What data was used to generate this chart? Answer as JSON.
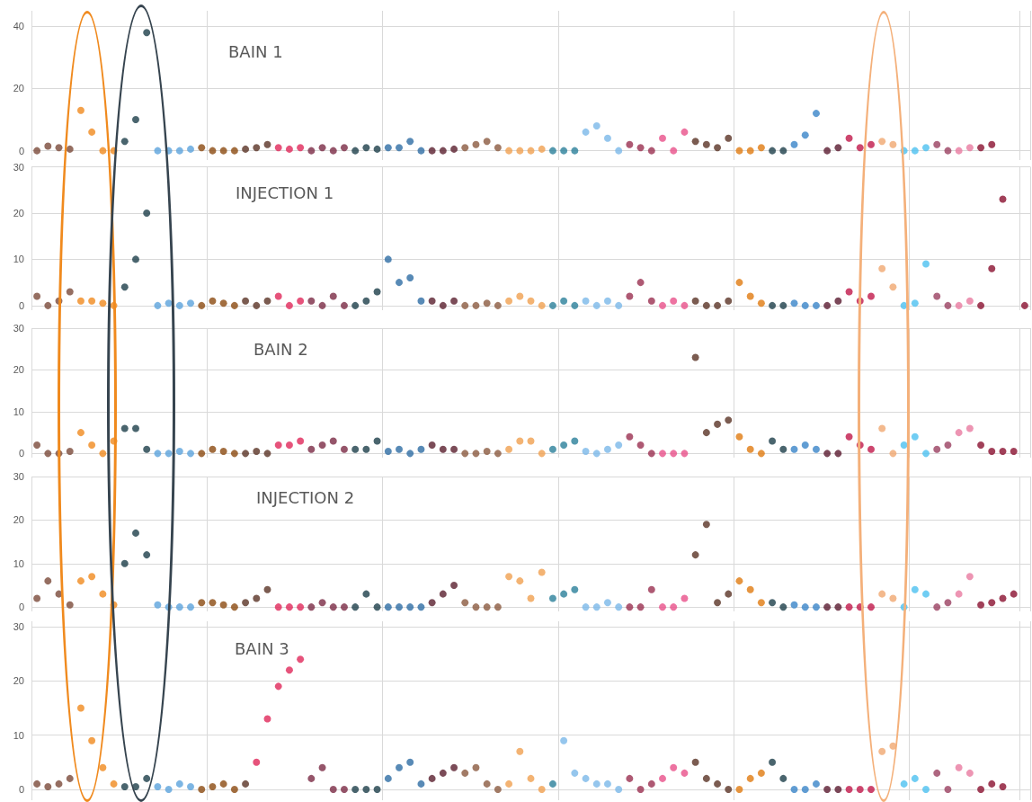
{
  "chart_data": [
    {
      "type": "scatter",
      "title": "BAIN 1",
      "marker": "circle",
      "grid": true,
      "tick_labels": "y",
      "ylim": [
        -3,
        45
      ],
      "yticks": [
        0,
        20,
        40
      ],
      "categories": [
        null,
        null,
        null,
        null,
        null,
        null,
        null,
        null,
        null,
        null,
        null,
        null,
        null,
        null,
        null,
        null,
        null,
        null,
        null,
        null,
        null,
        null,
        null,
        null,
        null,
        null,
        null,
        null,
        null,
        null,
        null,
        null,
        null,
        null,
        null,
        null,
        null,
        null,
        null,
        null,
        null,
        null,
        null,
        null,
        null,
        null,
        null,
        null,
        null,
        null,
        null,
        null,
        null,
        null,
        null,
        null,
        null,
        null,
        null,
        null,
        null,
        null,
        null,
        null,
        null,
        null,
        null,
        null,
        null,
        null,
        null,
        null,
        null,
        null,
        null,
        null,
        null,
        null,
        null,
        null,
        null,
        null,
        null,
        null,
        null,
        null,
        null,
        null,
        null,
        null,
        null
      ],
      "values": [
        0,
        1.5,
        1,
        0.5,
        13,
        6,
        0,
        0,
        3,
        10,
        38,
        0,
        0,
        0,
        0.5,
        1,
        0,
        0,
        0,
        0.5,
        1,
        2,
        1,
        0.5,
        1,
        0,
        1,
        0,
        1,
        0,
        1,
        0.5,
        1,
        1,
        3,
        0,
        0,
        0,
        0.5,
        1,
        2,
        3,
        1,
        0,
        0,
        0,
        0.5,
        0,
        0,
        0,
        6,
        8,
        4,
        0,
        2,
        1,
        0,
        4,
        0,
        6,
        3,
        2,
        1,
        4,
        0,
        0,
        1,
        0,
        0,
        2,
        5,
        12,
        0,
        1,
        4,
        1,
        2,
        3,
        2,
        0,
        0,
        1,
        2,
        0,
        0,
        1,
        1,
        2,
        null,
        null,
        null
      ],
      "colors": [
        "#7b4a3a",
        "#7b4a3a",
        "#7b4a3a",
        "#7b4a3a",
        "#f08a1e",
        "#f08a1e",
        "#f08a1e",
        "#f08a1e",
        "#1d3f4a",
        "#1d3f4a",
        "#1d3f4a",
        "#5ba3dc",
        "#5ba3dc",
        "#5ba3dc",
        "#5ba3dc",
        "#8b4a10",
        "#8b4a10",
        "#8b4a10",
        "#8b4a10",
        "#5a3325",
        "#5a3325",
        "#5a3325",
        "#e0285a",
        "#e0285a",
        "#e0285a",
        "#7a2a45",
        "#7a2a45",
        "#7a2a45",
        "#7a2a45",
        "#1d3f4a",
        "#1d3f4a",
        "#1d3f4a",
        "#2e6da4",
        "#2e6da4",
        "#2e6da4",
        "#2e6da4",
        "#5a1f2e",
        "#5a1f2e",
        "#5a1f2e",
        "#8b5a40",
        "#8b5a40",
        "#8b5a40",
        "#8b5a40",
        "#f0a050",
        "#f0a050",
        "#f0a050",
        "#f0a050",
        "#2a7f9a",
        "#2a7f9a",
        "#2a7f9a",
        "#7ab8e8",
        "#7ab8e8",
        "#7ab8e8",
        "#7ab8e8",
        "#9a3050",
        "#9a3050",
        "#9a3050",
        "#e8508a",
        "#e8508a",
        "#e8508a",
        "#5a3325",
        "#5a3325",
        "#5a3325",
        "#5a3325",
        "#e07a10",
        "#e07a10",
        "#e07a10",
        "#1d3f4a",
        "#1d3f4a",
        "#3a85c8",
        "#3a85c8",
        "#3a85c8",
        "#5a1a30",
        "#5a1a30",
        "#c0184a",
        "#c0184a",
        "#c0184a",
        "#f0a870",
        "#f0a870",
        "#4cc0f0",
        "#4cc0f0",
        "#4cc0f0",
        "#9a4060",
        "#9a4060",
        "#e87aa0",
        "#e87aa0",
        "#8a1030",
        "#8a1030",
        "#8a1030",
        "#8a1030",
        "#8a1030"
      ]
    },
    {
      "type": "scatter",
      "title": "INJECTION 1",
      "marker": "circle",
      "grid": true,
      "tick_labels": "y",
      "ylim": [
        -1,
        30
      ],
      "yticks": [
        0,
        10,
        20,
        30
      ],
      "categories": [
        null,
        null,
        null,
        null,
        null,
        null,
        null,
        null,
        null,
        null,
        null,
        null,
        null,
        null,
        null,
        null,
        null,
        null,
        null,
        null,
        null,
        null,
        null,
        null,
        null,
        null,
        null,
        null,
        null,
        null,
        null,
        null,
        null,
        null,
        null,
        null,
        null,
        null,
        null,
        null,
        null,
        null,
        null,
        null,
        null,
        null,
        null,
        null,
        null,
        null,
        null,
        null,
        null,
        null,
        null,
        null,
        null,
        null,
        null,
        null,
        null,
        null,
        null,
        null,
        null,
        null,
        null,
        null,
        null,
        null,
        null,
        null,
        null,
        null,
        null,
        null,
        null,
        null,
        null,
        null,
        null,
        null,
        null,
        null,
        null,
        null,
        null,
        null,
        null,
        null,
        null
      ],
      "values": [
        2,
        0,
        1,
        3,
        1,
        1,
        0.5,
        0,
        4,
        10,
        20,
        0,
        0.5,
        0,
        0.5,
        0,
        1,
        0.5,
        0,
        1,
        0,
        1,
        2,
        0,
        1,
        1,
        0,
        2,
        0,
        0,
        1,
        3,
        10,
        5,
        6,
        1,
        1,
        0,
        1,
        0,
        0,
        0.5,
        0,
        1,
        2,
        1,
        0,
        0,
        1,
        0,
        1,
        0,
        1,
        0,
        2,
        5,
        1,
        0,
        1,
        0,
        1,
        0,
        0,
        1,
        5,
        2,
        0.5,
        0,
        0,
        0.5,
        0,
        0,
        0,
        1,
        3,
        1,
        2,
        8,
        4,
        0,
        0.5,
        9,
        2,
        0,
        0,
        1,
        0,
        8,
        23,
        null,
        0
      ],
      "colors": [
        "#7b4a3a",
        "#7b4a3a",
        "#7b4a3a",
        "#7b4a3a",
        "#f08a1e",
        "#f08a1e",
        "#f08a1e",
        "#f08a1e",
        "#1d3f4a",
        "#1d3f4a",
        "#1d3f4a",
        "#5ba3dc",
        "#5ba3dc",
        "#5ba3dc",
        "#5ba3dc",
        "#8b4a10",
        "#8b4a10",
        "#8b4a10",
        "#8b4a10",
        "#5a3325",
        "#5a3325",
        "#5a3325",
        "#e0285a",
        "#e0285a",
        "#e0285a",
        "#7a2a45",
        "#7a2a45",
        "#7a2a45",
        "#7a2a45",
        "#1d3f4a",
        "#1d3f4a",
        "#1d3f4a",
        "#2e6da4",
        "#2e6da4",
        "#2e6da4",
        "#2e6da4",
        "#5a1f2e",
        "#5a1f2e",
        "#5a1f2e",
        "#8b5a40",
        "#8b5a40",
        "#8b5a40",
        "#8b5a40",
        "#f0a050",
        "#f0a050",
        "#f0a050",
        "#f0a050",
        "#2a7f9a",
        "#2a7f9a",
        "#2a7f9a",
        "#7ab8e8",
        "#7ab8e8",
        "#7ab8e8",
        "#7ab8e8",
        "#9a3050",
        "#9a3050",
        "#9a3050",
        "#e8508a",
        "#e8508a",
        "#e8508a",
        "#5a3325",
        "#5a3325",
        "#5a3325",
        "#5a3325",
        "#e07a10",
        "#e07a10",
        "#e07a10",
        "#1d3f4a",
        "#1d3f4a",
        "#3a85c8",
        "#3a85c8",
        "#3a85c8",
        "#5a1a30",
        "#5a1a30",
        "#c0184a",
        "#c0184a",
        "#c0184a",
        "#f0a870",
        "#f0a870",
        "#4cc0f0",
        "#4cc0f0",
        "#4cc0f0",
        "#9a4060",
        "#9a4060",
        "#e87aa0",
        "#e87aa0",
        "#8a1030",
        "#8a1030",
        "#8a1030",
        "#8a1030",
        "#8a1030"
      ]
    },
    {
      "type": "scatter",
      "title": "BAIN 2",
      "marker": "circle",
      "grid": true,
      "tick_labels": "y",
      "ylim": [
        -1,
        30
      ],
      "yticks": [
        0,
        10,
        20,
        30
      ],
      "categories": [
        null,
        null,
        null,
        null,
        null,
        null,
        null,
        null,
        null,
        null,
        null,
        null,
        null,
        null,
        null,
        null,
        null,
        null,
        null,
        null,
        null,
        null,
        null,
        null,
        null,
        null,
        null,
        null,
        null,
        null,
        null,
        null,
        null,
        null,
        null,
        null,
        null,
        null,
        null,
        null,
        null,
        null,
        null,
        null,
        null,
        null,
        null,
        null,
        null,
        null,
        null,
        null,
        null,
        null,
        null,
        null,
        null,
        null,
        null,
        null,
        null,
        null,
        null,
        null,
        null,
        null,
        null,
        null,
        null,
        null,
        null,
        null,
        null,
        null,
        null,
        null,
        null,
        null,
        null,
        null,
        null,
        null,
        null,
        null,
        null,
        null,
        null,
        null,
        null,
        null,
        null
      ],
      "values": [
        2,
        0,
        0,
        0.5,
        5,
        2,
        0,
        3,
        6,
        6,
        1,
        0,
        0,
        0.5,
        0,
        0,
        1,
        0.5,
        0,
        0,
        0.5,
        0,
        2,
        2,
        3,
        1,
        2,
        3,
        1,
        1,
        1,
        3,
        0.5,
        1,
        0,
        1,
        2,
        1,
        1,
        0,
        0,
        0.5,
        0,
        1,
        3,
        3,
        0,
        1,
        2,
        3,
        0.5,
        0,
        1,
        2,
        4,
        2,
        0,
        0,
        0,
        0,
        23,
        5,
        7,
        8,
        4,
        1,
        0,
        3,
        1,
        1,
        2,
        1,
        0,
        0,
        4,
        2,
        1,
        6,
        0,
        2,
        4,
        0,
        1,
        2,
        5,
        6,
        2,
        0.5,
        0.5,
        0.5,
        null
      ],
      "colors": [
        "#7b4a3a",
        "#7b4a3a",
        "#7b4a3a",
        "#7b4a3a",
        "#f08a1e",
        "#f08a1e",
        "#f08a1e",
        "#f08a1e",
        "#1d3f4a",
        "#1d3f4a",
        "#1d3f4a",
        "#5ba3dc",
        "#5ba3dc",
        "#5ba3dc",
        "#5ba3dc",
        "#8b4a10",
        "#8b4a10",
        "#8b4a10",
        "#8b4a10",
        "#5a3325",
        "#5a3325",
        "#5a3325",
        "#e0285a",
        "#e0285a",
        "#e0285a",
        "#7a2a45",
        "#7a2a45",
        "#7a2a45",
        "#7a2a45",
        "#1d3f4a",
        "#1d3f4a",
        "#1d3f4a",
        "#2e6da4",
        "#2e6da4",
        "#2e6da4",
        "#2e6da4",
        "#5a1f2e",
        "#5a1f2e",
        "#5a1f2e",
        "#8b5a40",
        "#8b5a40",
        "#8b5a40",
        "#8b5a40",
        "#f0a050",
        "#f0a050",
        "#f0a050",
        "#f0a050",
        "#2a7f9a",
        "#2a7f9a",
        "#2a7f9a",
        "#7ab8e8",
        "#7ab8e8",
        "#7ab8e8",
        "#7ab8e8",
        "#9a3050",
        "#9a3050",
        "#9a3050",
        "#e8508a",
        "#e8508a",
        "#e8508a",
        "#5a3325",
        "#5a3325",
        "#5a3325",
        "#5a3325",
        "#e07a10",
        "#e07a10",
        "#e07a10",
        "#1d3f4a",
        "#1d3f4a",
        "#3a85c8",
        "#3a85c8",
        "#3a85c8",
        "#5a1a30",
        "#5a1a30",
        "#c0184a",
        "#c0184a",
        "#c0184a",
        "#f0a870",
        "#f0a870",
        "#4cc0f0",
        "#4cc0f0",
        "#4cc0f0",
        "#9a4060",
        "#9a4060",
        "#e87aa0",
        "#e87aa0",
        "#8a1030",
        "#8a1030",
        "#8a1030",
        "#8a1030",
        "#8a1030"
      ]
    },
    {
      "type": "scatter",
      "title": "INJECTION 2",
      "marker": "circle",
      "grid": true,
      "tick_labels": "y",
      "ylim": [
        -1,
        30
      ],
      "yticks": [
        0,
        10,
        20,
        30
      ],
      "categories": [
        null,
        null,
        null,
        null,
        null,
        null,
        null,
        null,
        null,
        null,
        null,
        null,
        null,
        null,
        null,
        null,
        null,
        null,
        null,
        null,
        null,
        null,
        null,
        null,
        null,
        null,
        null,
        null,
        null,
        null,
        null,
        null,
        null,
        null,
        null,
        null,
        null,
        null,
        null,
        null,
        null,
        null,
        null,
        null,
        null,
        null,
        null,
        null,
        null,
        null,
        null,
        null,
        null,
        null,
        null,
        null,
        null,
        null,
        null,
        null,
        null,
        null,
        null,
        null,
        null,
        null,
        null,
        null,
        null,
        null,
        null,
        null,
        null,
        null,
        null,
        null,
        null,
        null,
        null,
        null,
        null,
        null,
        null,
        null,
        null,
        null,
        null,
        null,
        null,
        null,
        null
      ],
      "values": [
        2,
        6,
        3,
        0.5,
        6,
        7,
        3,
        0.5,
        10,
        17,
        12,
        0.5,
        0,
        0,
        0,
        1,
        1,
        0.5,
        0,
        1,
        2,
        4,
        0,
        0,
        0,
        0,
        1,
        0,
        0,
        0,
        3,
        0,
        0,
        0,
        0,
        0,
        1,
        3,
        5,
        1,
        0,
        0,
        0,
        7,
        6,
        2,
        8,
        2,
        3,
        4,
        0,
        0,
        1,
        0,
        0,
        0,
        4,
        0,
        0,
        2,
        12,
        19,
        1,
        3,
        6,
        4,
        1,
        1,
        0,
        0.5,
        0,
        0,
        0,
        0,
        0,
        0,
        0,
        3,
        2,
        0,
        4,
        3,
        0,
        1,
        3,
        7,
        0.5,
        1,
        2,
        3,
        null
      ],
      "colors": [
        "#7b4a3a",
        "#7b4a3a",
        "#7b4a3a",
        "#7b4a3a",
        "#f08a1e",
        "#f08a1e",
        "#f08a1e",
        "#f08a1e",
        "#1d3f4a",
        "#1d3f4a",
        "#1d3f4a",
        "#5ba3dc",
        "#5ba3dc",
        "#5ba3dc",
        "#5ba3dc",
        "#8b4a10",
        "#8b4a10",
        "#8b4a10",
        "#8b4a10",
        "#5a3325",
        "#5a3325",
        "#5a3325",
        "#e0285a",
        "#e0285a",
        "#e0285a",
        "#7a2a45",
        "#7a2a45",
        "#7a2a45",
        "#7a2a45",
        "#1d3f4a",
        "#1d3f4a",
        "#1d3f4a",
        "#2e6da4",
        "#2e6da4",
        "#2e6da4",
        "#2e6da4",
        "#5a1f2e",
        "#5a1f2e",
        "#5a1f2e",
        "#8b5a40",
        "#8b5a40",
        "#8b5a40",
        "#8b5a40",
        "#f0a050",
        "#f0a050",
        "#f0a050",
        "#f0a050",
        "#2a7f9a",
        "#2a7f9a",
        "#2a7f9a",
        "#7ab8e8",
        "#7ab8e8",
        "#7ab8e8",
        "#7ab8e8",
        "#9a3050",
        "#9a3050",
        "#9a3050",
        "#e8508a",
        "#e8508a",
        "#e8508a",
        "#5a3325",
        "#5a3325",
        "#5a3325",
        "#5a3325",
        "#e07a10",
        "#e07a10",
        "#e07a10",
        "#1d3f4a",
        "#1d3f4a",
        "#3a85c8",
        "#3a85c8",
        "#3a85c8",
        "#5a1a30",
        "#5a1a30",
        "#c0184a",
        "#c0184a",
        "#c0184a",
        "#f0a870",
        "#f0a870",
        "#4cc0f0",
        "#4cc0f0",
        "#4cc0f0",
        "#9a4060",
        "#9a4060",
        "#e87aa0",
        "#e87aa0",
        "#8a1030",
        "#8a1030",
        "#8a1030",
        "#8a1030",
        "#8a1030"
      ]
    },
    {
      "type": "scatter",
      "title": "BAIN 3",
      "marker": "circle",
      "grid": true,
      "tick_labels": "y",
      "ylim": [
        -2,
        31
      ],
      "yticks": [
        0,
        10,
        20,
        30
      ],
      "categories": [
        null,
        null,
        null,
        null,
        null,
        null,
        null,
        null,
        null,
        null,
        null,
        null,
        null,
        null,
        null,
        null,
        null,
        null,
        null,
        null,
        null,
        null,
        null,
        null,
        null,
        null,
        null,
        null,
        null,
        null,
        null,
        null,
        null,
        null,
        null,
        null,
        null,
        null,
        null,
        null,
        null,
        null,
        null,
        null,
        null,
        null,
        null,
        null,
        null,
        null,
        null,
        null,
        null,
        null,
        null,
        null,
        null,
        null,
        null,
        null,
        null,
        null,
        null,
        null,
        null,
        null,
        null,
        null,
        null,
        null,
        null,
        null,
        null,
        null,
        null,
        null,
        null,
        null,
        null,
        null,
        null,
        null,
        null,
        null,
        null,
        null,
        null,
        null,
        null,
        null,
        null
      ],
      "values": [
        1,
        0.5,
        1,
        2,
        15,
        9,
        4,
        1,
        0.5,
        0.5,
        2,
        0.5,
        0,
        1,
        0.5,
        0,
        0.5,
        1,
        0,
        1,
        5,
        13,
        19,
        22,
        24,
        2,
        4,
        0,
        0,
        0,
        0,
        0,
        2,
        4,
        5,
        1,
        2,
        3,
        4,
        3,
        4,
        1,
        0,
        1,
        7,
        2,
        0,
        1,
        9,
        3,
        2,
        1,
        1,
        0,
        2,
        0,
        1,
        2,
        4,
        3,
        5,
        2,
        1,
        0,
        0,
        2,
        3,
        5,
        2,
        0,
        0,
        1,
        0,
        0,
        0,
        0,
        0,
        7,
        8,
        1,
        2,
        0,
        3,
        0,
        4,
        3,
        0,
        1,
        0.5,
        null,
        null
      ],
      "colors": [
        "#7b4a3a",
        "#7b4a3a",
        "#7b4a3a",
        "#7b4a3a",
        "#f08a1e",
        "#f08a1e",
        "#f08a1e",
        "#f08a1e",
        "#1d3f4a",
        "#1d3f4a",
        "#1d3f4a",
        "#5ba3dc",
        "#5ba3dc",
        "#5ba3dc",
        "#5ba3dc",
        "#8b4a10",
        "#8b4a10",
        "#8b4a10",
        "#8b4a10",
        "#5a3325",
        "#e0285a",
        "#e0285a",
        "#e0285a",
        "#e0285a",
        "#e0285a",
        "#7a2a45",
        "#7a2a45",
        "#7a2a45",
        "#7a2a45",
        "#1d3f4a",
        "#1d3f4a",
        "#1d3f4a",
        "#2e6da4",
        "#2e6da4",
        "#2e6da4",
        "#2e6da4",
        "#5a1f2e",
        "#5a1f2e",
        "#5a1f2e",
        "#8b5a40",
        "#8b5a40",
        "#8b5a40",
        "#8b5a40",
        "#f0a050",
        "#f0a050",
        "#f0a050",
        "#f0a050",
        "#2a7f9a",
        "#7ab8e8",
        "#7ab8e8",
        "#7ab8e8",
        "#7ab8e8",
        "#7ab8e8",
        "#7ab8e8",
        "#9a3050",
        "#9a3050",
        "#9a3050",
        "#e8508a",
        "#e8508a",
        "#e8508a",
        "#5a3325",
        "#5a3325",
        "#5a3325",
        "#5a3325",
        "#e07a10",
        "#e07a10",
        "#e07a10",
        "#1d3f4a",
        "#1d3f4a",
        "#3a85c8",
        "#3a85c8",
        "#3a85c8",
        "#5a1a30",
        "#5a1a30",
        "#c0184a",
        "#c0184a",
        "#c0184a",
        "#f0a870",
        "#f0a870",
        "#4cc0f0",
        "#4cc0f0",
        "#4cc0f0",
        "#9a4060",
        "#9a4060",
        "#e87aa0",
        "#e87aa0",
        "#8a1030",
        "#8a1030",
        "#8a1030",
        "#8a1030",
        "#8a1030"
      ]
    }
  ]
}
